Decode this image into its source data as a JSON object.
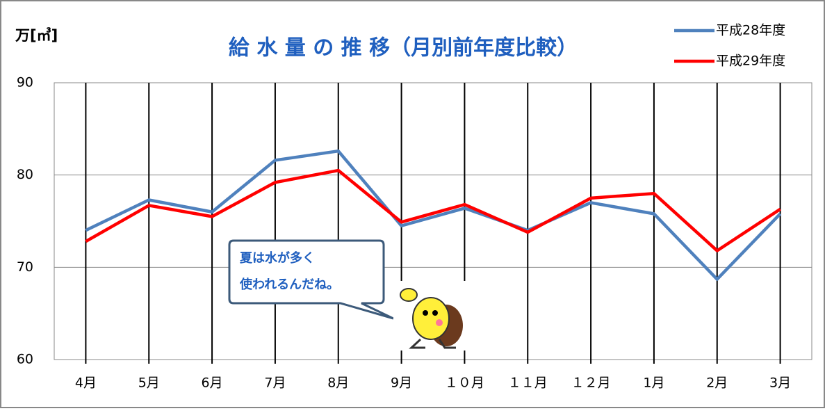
{
  "chart_data": {
    "type": "line",
    "title": "給 水 量 の 推 移（月別前年度比較）",
    "y_label": "万[㎥]",
    "categories": [
      "4月",
      "5月",
      "6月",
      "7月",
      "8月",
      "9月",
      "１０月",
      "１１月",
      "１２月",
      "1月",
      "2月",
      "3月"
    ],
    "series": [
      {
        "name": "平成28年度",
        "color": "#4f81bd",
        "values": [
          74.0,
          77.3,
          76.0,
          81.6,
          82.6,
          74.5,
          76.4,
          74.0,
          77.0,
          75.8,
          68.7,
          75.8
        ]
      },
      {
        "name": "平成29年度",
        "color": "#ff0000",
        "values": [
          72.8,
          76.7,
          75.5,
          79.2,
          80.5,
          74.9,
          76.8,
          73.8,
          77.5,
          78.0,
          71.8,
          76.3
        ]
      }
    ],
    "ylim": [
      60,
      90
    ],
    "yticks": [
      60,
      70,
      80,
      90
    ],
    "grid": true,
    "legend": "top-right",
    "callout": [
      "夏は水が多く",
      "使われるんだね。"
    ]
  }
}
